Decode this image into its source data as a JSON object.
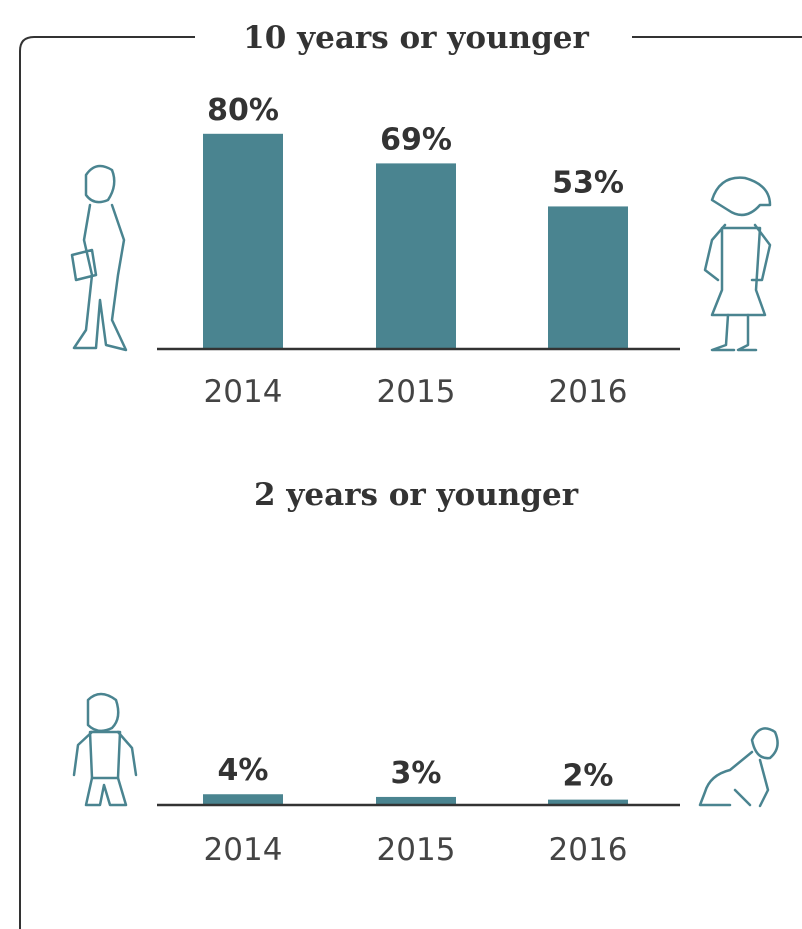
{
  "chart_data": [
    {
      "type": "bar",
      "title": "10 years or younger",
      "categories": [
        "2014",
        "2015",
        "2016"
      ],
      "values": [
        80,
        69,
        53
      ],
      "value_labels": [
        "80%",
        "69%",
        "53%"
      ],
      "color": "#4a8490"
    },
    {
      "type": "bar",
      "title": "2 years or younger",
      "categories": [
        "2014",
        "2015",
        "2016"
      ],
      "values": [
        4,
        3,
        2
      ],
      "value_labels": [
        "4%",
        "3%",
        "2%"
      ],
      "color": "#4a8490"
    }
  ]
}
